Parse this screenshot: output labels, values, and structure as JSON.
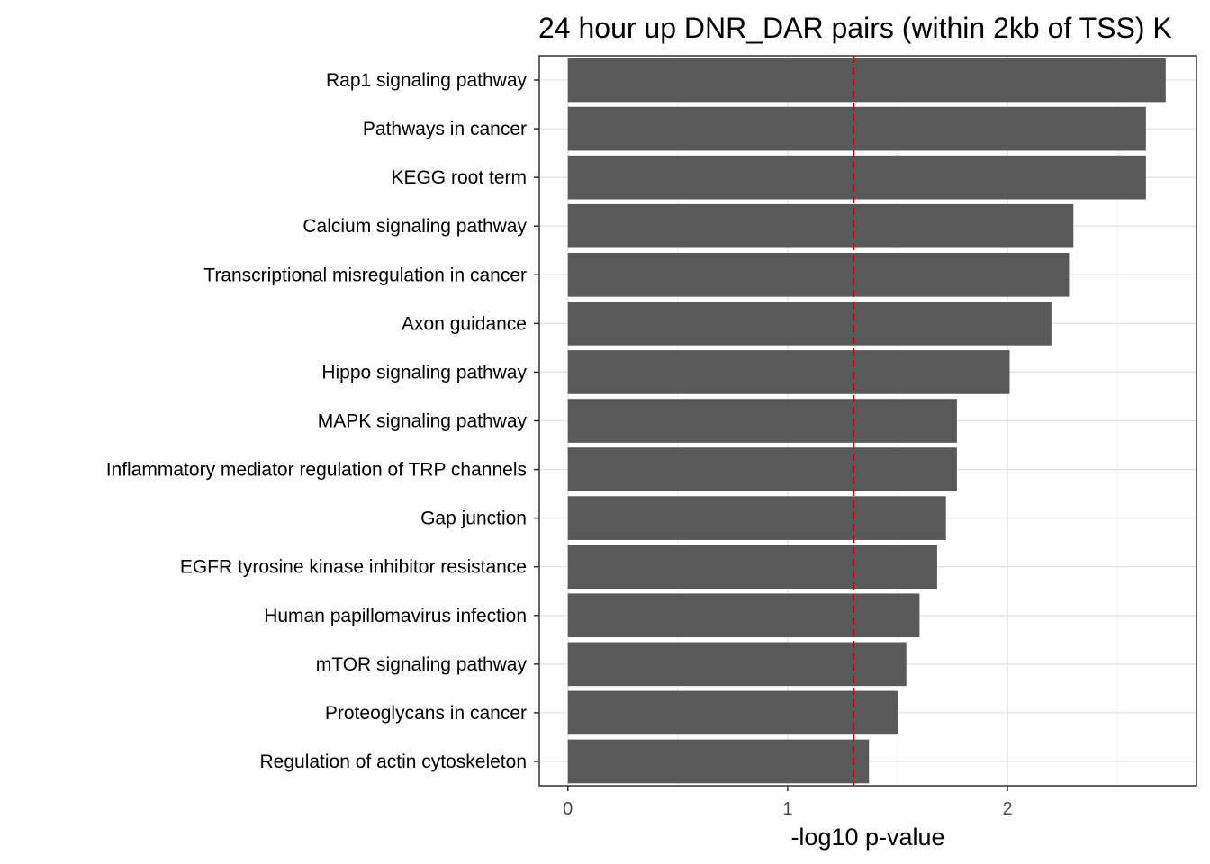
{
  "chart_data": {
    "type": "bar",
    "orientation": "horizontal",
    "title": "24 hour up DNR_DAR pairs (within 2kb of TSS) K",
    "xlabel": "-log10 p-value",
    "ylabel": "",
    "xlim": [
      -0.13,
      2.86
    ],
    "xticks": [
      0,
      1,
      2
    ],
    "grid": true,
    "bar_color": "#595959",
    "reference_line": {
      "x": 1.3,
      "color": "#cc0000",
      "style": "dashed"
    },
    "categories": [
      "Rap1 signaling pathway",
      "Pathways in cancer",
      "KEGG root term",
      "Calcium signaling pathway",
      "Transcriptional misregulation in cancer",
      "Axon guidance",
      "Hippo signaling pathway",
      "MAPK signaling pathway",
      "Inflammatory mediator regulation of TRP channels",
      "Gap junction",
      "EGFR tyrosine kinase inhibitor resistance",
      "Human papillomavirus infection",
      "mTOR signaling pathway",
      "Proteoglycans in cancer",
      "Regulation of actin cytoskeleton"
    ],
    "values": [
      2.72,
      2.63,
      2.63,
      2.3,
      2.28,
      2.2,
      2.01,
      1.77,
      1.77,
      1.72,
      1.68,
      1.6,
      1.54,
      1.5,
      1.37
    ]
  }
}
